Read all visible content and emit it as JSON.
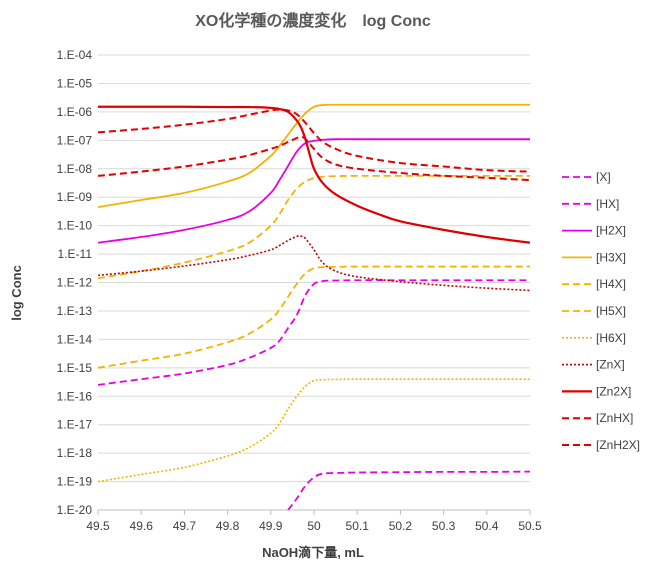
{
  "chart_data": {
    "type": "line",
    "title": "XO化学種の濃度変化　log Conc",
    "xlabel": "NaOH滴下量, mL",
    "ylabel": "log Conc",
    "xlim": [
      49.5,
      50.5
    ],
    "ylim": [
      -20,
      -4
    ],
    "x_ticks": [
      "49.5",
      "49.6",
      "49.7",
      "49.8",
      "49.9",
      "50",
      "50.1",
      "50.2",
      "50.3",
      "50.4",
      "50.5"
    ],
    "y_ticks": [
      "1.E-04",
      "1.E-05",
      "1.E-06",
      "1.E-07",
      "1.E-08",
      "1.E-09",
      "1.E-10",
      "1.E-11",
      "1.E-12",
      "1.E-13",
      "1.E-14",
      "1.E-15",
      "1.E-16",
      "1.E-17",
      "1.E-18",
      "1.E-19",
      "1.E-20"
    ],
    "grid": "horizontal",
    "legend_position": "right",
    "series": [
      {
        "name": "[X]",
        "color": "#E600E6",
        "dash": "dash",
        "width": 1.8,
        "points": [
          [
            49.94,
            -20.0
          ],
          [
            49.96,
            -19.6
          ],
          [
            49.98,
            -19.15
          ],
          [
            50.0,
            -18.85
          ],
          [
            50.02,
            -18.72
          ],
          [
            50.05,
            -18.7
          ],
          [
            50.1,
            -18.68
          ],
          [
            50.2,
            -18.67
          ],
          [
            50.3,
            -18.66
          ],
          [
            50.4,
            -18.66
          ],
          [
            50.5,
            -18.65
          ]
        ]
      },
      {
        "name": "[HX]",
        "color": "#E600E6",
        "dash": "dash",
        "width": 1.8,
        "points": [
          [
            49.5,
            -15.6
          ],
          [
            49.6,
            -15.4
          ],
          [
            49.7,
            -15.2
          ],
          [
            49.8,
            -14.9
          ],
          [
            49.85,
            -14.65
          ],
          [
            49.9,
            -14.3
          ],
          [
            49.92,
            -14.05
          ],
          [
            49.94,
            -13.6
          ],
          [
            49.96,
            -13.15
          ],
          [
            49.98,
            -12.45
          ],
          [
            50.0,
            -12.05
          ],
          [
            50.02,
            -11.95
          ],
          [
            50.05,
            -11.93
          ],
          [
            50.1,
            -11.92
          ],
          [
            50.2,
            -11.92
          ],
          [
            50.3,
            -11.92
          ],
          [
            50.4,
            -11.92
          ],
          [
            50.5,
            -11.92
          ]
        ]
      },
      {
        "name": "[H2X]",
        "color": "#E600E6",
        "dash": "solid",
        "width": 1.8,
        "points": [
          [
            49.5,
            -10.6
          ],
          [
            49.6,
            -10.4
          ],
          [
            49.7,
            -10.15
          ],
          [
            49.8,
            -9.8
          ],
          [
            49.85,
            -9.5
          ],
          [
            49.9,
            -8.85
          ],
          [
            49.92,
            -8.4
          ],
          [
            49.94,
            -7.9
          ],
          [
            49.96,
            -7.4
          ],
          [
            49.98,
            -7.1
          ],
          [
            50.0,
            -7.02
          ],
          [
            50.02,
            -6.98
          ],
          [
            50.05,
            -6.96
          ],
          [
            50.1,
            -6.96
          ],
          [
            50.2,
            -6.96
          ],
          [
            50.3,
            -6.96
          ],
          [
            50.4,
            -6.96
          ],
          [
            50.5,
            -6.96
          ]
        ]
      },
      {
        "name": "[H3X]",
        "color": "#F2B400",
        "dash": "solid",
        "width": 1.8,
        "points": [
          [
            49.5,
            -9.35
          ],
          [
            49.6,
            -9.1
          ],
          [
            49.7,
            -8.85
          ],
          [
            49.8,
            -8.45
          ],
          [
            49.85,
            -8.15
          ],
          [
            49.9,
            -7.55
          ],
          [
            49.92,
            -7.2
          ],
          [
            49.94,
            -6.8
          ],
          [
            49.96,
            -6.4
          ],
          [
            49.98,
            -6.05
          ],
          [
            50.0,
            -5.82
          ],
          [
            50.02,
            -5.76
          ],
          [
            50.05,
            -5.75
          ],
          [
            50.1,
            -5.75
          ],
          [
            50.2,
            -5.75
          ],
          [
            50.3,
            -5.75
          ],
          [
            50.4,
            -5.75
          ],
          [
            50.5,
            -5.75
          ]
        ]
      },
      {
        "name": "[H4X]",
        "color": "#F2B400",
        "dash": "dash",
        "width": 1.8,
        "points": [
          [
            49.5,
            -11.85
          ],
          [
            49.6,
            -11.6
          ],
          [
            49.7,
            -11.3
          ],
          [
            49.8,
            -10.9
          ],
          [
            49.85,
            -10.6
          ],
          [
            49.9,
            -10.0
          ],
          [
            49.92,
            -9.6
          ],
          [
            49.94,
            -9.1
          ],
          [
            49.96,
            -8.7
          ],
          [
            49.98,
            -8.45
          ],
          [
            50.0,
            -8.33
          ],
          [
            50.02,
            -8.28
          ],
          [
            50.05,
            -8.26
          ],
          [
            50.1,
            -8.25
          ],
          [
            50.2,
            -8.25
          ],
          [
            50.3,
            -8.25
          ],
          [
            50.4,
            -8.25
          ],
          [
            50.5,
            -8.25
          ]
        ]
      },
      {
        "name": "[H5X]",
        "color": "#F2B400",
        "dash": "dash",
        "width": 1.8,
        "points": [
          [
            49.5,
            -15.0
          ],
          [
            49.6,
            -14.75
          ],
          [
            49.7,
            -14.5
          ],
          [
            49.8,
            -14.1
          ],
          [
            49.85,
            -13.8
          ],
          [
            49.9,
            -13.3
          ],
          [
            49.92,
            -12.95
          ],
          [
            49.94,
            -12.5
          ],
          [
            49.96,
            -12.05
          ],
          [
            49.98,
            -11.68
          ],
          [
            50.0,
            -11.5
          ],
          [
            50.02,
            -11.46
          ],
          [
            50.05,
            -11.45
          ],
          [
            50.1,
            -11.44
          ],
          [
            50.2,
            -11.44
          ],
          [
            50.3,
            -11.44
          ],
          [
            50.4,
            -11.44
          ],
          [
            50.5,
            -11.44
          ]
        ]
      },
      {
        "name": "[H6X]",
        "color": "#F2B400",
        "dash": "dot",
        "width": 1.6,
        "points": [
          [
            49.5,
            -19.0
          ],
          [
            49.6,
            -18.75
          ],
          [
            49.7,
            -18.5
          ],
          [
            49.8,
            -18.1
          ],
          [
            49.85,
            -17.8
          ],
          [
            49.9,
            -17.3
          ],
          [
            49.92,
            -16.95
          ],
          [
            49.94,
            -16.45
          ],
          [
            49.96,
            -16.0
          ],
          [
            49.98,
            -15.65
          ],
          [
            50.0,
            -15.45
          ],
          [
            50.02,
            -15.42
          ],
          [
            50.05,
            -15.41
          ],
          [
            50.1,
            -15.4
          ],
          [
            50.2,
            -15.4
          ],
          [
            50.3,
            -15.4
          ],
          [
            50.4,
            -15.4
          ],
          [
            50.5,
            -15.4
          ]
        ]
      },
      {
        "name": "[ZnX]",
        "color": "#C00000",
        "dash": "dot",
        "width": 1.6,
        "points": [
          [
            49.5,
            -11.75
          ],
          [
            49.6,
            -11.6
          ],
          [
            49.7,
            -11.42
          ],
          [
            49.8,
            -11.2
          ],
          [
            49.85,
            -11.05
          ],
          [
            49.9,
            -10.85
          ],
          [
            49.92,
            -10.7
          ],
          [
            49.94,
            -10.52
          ],
          [
            49.96,
            -10.38
          ],
          [
            49.97,
            -10.37
          ],
          [
            49.98,
            -10.45
          ],
          [
            50.0,
            -10.85
          ],
          [
            50.02,
            -11.3
          ],
          [
            50.05,
            -11.6
          ],
          [
            50.1,
            -11.8
          ],
          [
            50.2,
            -11.97
          ],
          [
            50.3,
            -12.1
          ],
          [
            50.4,
            -12.2
          ],
          [
            50.5,
            -12.28
          ]
        ]
      },
      {
        "name": "[Zn2X]",
        "color": "#E00000",
        "dash": "solid",
        "width": 2.2,
        "points": [
          [
            49.5,
            -5.82
          ],
          [
            49.6,
            -5.82
          ],
          [
            49.7,
            -5.82
          ],
          [
            49.8,
            -5.83
          ],
          [
            49.85,
            -5.83
          ],
          [
            49.9,
            -5.86
          ],
          [
            49.92,
            -5.9
          ],
          [
            49.94,
            -6.0
          ],
          [
            49.96,
            -6.3
          ],
          [
            49.97,
            -6.55
          ],
          [
            49.98,
            -6.95
          ],
          [
            49.99,
            -7.5
          ],
          [
            50.0,
            -8.0
          ],
          [
            50.02,
            -8.5
          ],
          [
            50.05,
            -8.9
          ],
          [
            50.1,
            -9.3
          ],
          [
            50.15,
            -9.6
          ],
          [
            50.2,
            -9.85
          ],
          [
            50.3,
            -10.15
          ],
          [
            50.4,
            -10.4
          ],
          [
            50.5,
            -10.6
          ]
        ]
      },
      {
        "name": "[ZnHX]",
        "color": "#E00000",
        "dash": "dash",
        "width": 2.0,
        "points": [
          [
            49.5,
            -8.25
          ],
          [
            49.6,
            -8.1
          ],
          [
            49.7,
            -7.92
          ],
          [
            49.8,
            -7.68
          ],
          [
            49.85,
            -7.52
          ],
          [
            49.9,
            -7.3
          ],
          [
            49.92,
            -7.2
          ],
          [
            49.94,
            -7.06
          ],
          [
            49.96,
            -6.92
          ],
          [
            49.97,
            -6.88
          ],
          [
            49.98,
            -6.95
          ],
          [
            50.0,
            -7.3
          ],
          [
            50.02,
            -7.62
          ],
          [
            50.05,
            -7.85
          ],
          [
            50.1,
            -8.0
          ],
          [
            50.2,
            -8.15
          ],
          [
            50.3,
            -8.25
          ],
          [
            50.4,
            -8.32
          ],
          [
            50.5,
            -8.4
          ]
        ]
      },
      {
        "name": "[ZnH2X]",
        "color": "#E00000",
        "dash": "dash",
        "width": 2.0,
        "points": [
          [
            49.5,
            -6.72
          ],
          [
            49.6,
            -6.6
          ],
          [
            49.7,
            -6.45
          ],
          [
            49.8,
            -6.25
          ],
          [
            49.85,
            -6.1
          ],
          [
            49.9,
            -5.95
          ],
          [
            49.92,
            -5.92
          ],
          [
            49.94,
            -5.95
          ],
          [
            49.96,
            -6.08
          ],
          [
            49.98,
            -6.38
          ],
          [
            50.0,
            -6.75
          ],
          [
            50.02,
            -7.05
          ],
          [
            50.05,
            -7.3
          ],
          [
            50.1,
            -7.55
          ],
          [
            50.2,
            -7.8
          ],
          [
            50.3,
            -7.92
          ],
          [
            50.4,
            -8.05
          ],
          [
            50.5,
            -8.1
          ]
        ]
      }
    ]
  }
}
